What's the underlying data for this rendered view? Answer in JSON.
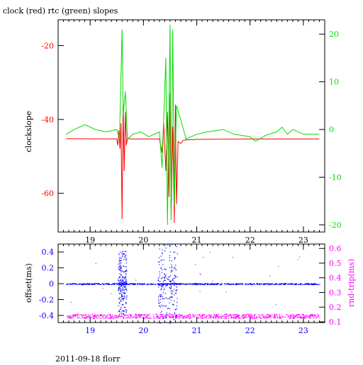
{
  "footer_text": "2011-09-18 florr",
  "colors": {
    "axis": "#000000",
    "clock": "#ff0000",
    "rtc": "#00dd00",
    "offset": "#0000ff",
    "rtt": "#ff00ff"
  },
  "chart_data": [
    {
      "type": "line",
      "title": "clock (red) rtc (green) slopes",
      "xlabel": "",
      "ylabel": "clockslope",
      "y2label": "",
      "x_ticks": [
        19,
        20,
        21,
        22,
        23
      ],
      "xlim": [
        18.4,
        23.4
      ],
      "ylim": [
        -70.5,
        -13
      ],
      "y_ticks": [
        -20,
        -40,
        -60
      ],
      "y2lim": [
        -21.5,
        23
      ],
      "y2_ticks": [
        20,
        10,
        0,
        -10,
        -20
      ],
      "series": [
        {
          "name": "clock",
          "axis": "left",
          "color": "#ff0000",
          "x": [
            18.55,
            19.5,
            19.52,
            19.54,
            19.56,
            19.58,
            19.6,
            19.62,
            19.64,
            19.66,
            19.68,
            19.7,
            19.8,
            20.0,
            20.3,
            20.35,
            20.38,
            20.42,
            20.45,
            20.48,
            20.5,
            20.52,
            20.55,
            20.58,
            20.6,
            20.62,
            20.65,
            20.7,
            20.75,
            21.0,
            22.0,
            23.3
          ],
          "y": [
            -45.2,
            -45.3,
            -47,
            -43,
            -48,
            -41,
            -67,
            -36,
            -54,
            -38,
            -47,
            -45.2,
            -45.3,
            -45.3,
            -45.3,
            -49,
            -41,
            -54,
            -38,
            -61,
            -33,
            -66,
            -42,
            -68,
            -36,
            -63,
            -46,
            -46.5,
            -45.6,
            -45.4,
            -45.3,
            -45.3
          ]
        },
        {
          "name": "rtc",
          "axis": "right",
          "color": "#00dd00",
          "x": [
            18.55,
            18.7,
            18.9,
            19.1,
            19.3,
            19.5,
            19.55,
            19.6,
            19.62,
            19.66,
            19.7,
            19.8,
            19.95,
            20.1,
            20.3,
            20.35,
            20.42,
            20.45,
            20.5,
            20.52,
            20.55,
            20.58,
            20.62,
            20.7,
            20.8,
            21.0,
            21.2,
            21.5,
            21.7,
            22.0,
            22.1,
            22.3,
            22.5,
            22.6,
            22.7,
            22.8,
            23.0,
            23.3
          ],
          "y": [
            -1,
            0,
            1,
            0,
            -0.5,
            0,
            -2,
            21,
            3,
            8,
            -2,
            -1,
            -0.5,
            -1.5,
            -0.5,
            -8,
            15,
            -20,
            22,
            -19,
            21,
            -16,
            5,
            2,
            -2,
            -1,
            -0.5,
            0,
            -1,
            -1.5,
            -2.5,
            -1.2,
            -0.5,
            0.5,
            -1,
            0,
            -1,
            -1
          ]
        }
      ]
    },
    {
      "type": "scatter",
      "title": "",
      "xlabel": "",
      "ylabel": "offset(ms)",
      "y2label": "rnd-trip(ms)",
      "x_ticks": [
        19,
        20,
        21,
        22,
        23
      ],
      "xlim": [
        18.4,
        23.4
      ],
      "ylim": [
        -0.49,
        0.5
      ],
      "y_ticks": [
        0.4,
        0.2,
        0,
        -0.2,
        -0.4
      ],
      "y2lim": [
        0.095,
        0.63
      ],
      "y2_ticks": [
        0.6,
        0.5,
        0.4,
        0.3,
        0.2,
        0.1
      ],
      "series": [
        {
          "name": "offset",
          "axis": "left",
          "color": "#0000ff",
          "x_range": [
            18.55,
            23.3
          ],
          "baseline": 0.0,
          "noise": 0.008,
          "bursts": [
            {
              "x_center": 19.6,
              "x_halfwidth": 0.08,
              "y_spread": 0.42
            },
            {
              "x_center": 20.45,
              "x_halfwidth": 0.18,
              "y_spread": 0.5
            }
          ]
        },
        {
          "name": "rnd-trip",
          "axis": "right",
          "color": "#ff00ff",
          "x_range": [
            18.55,
            23.3
          ],
          "baseline": 0.14,
          "noise": 0.015,
          "outlier_y_range": [
            0.2,
            0.6
          ]
        }
      ]
    }
  ]
}
